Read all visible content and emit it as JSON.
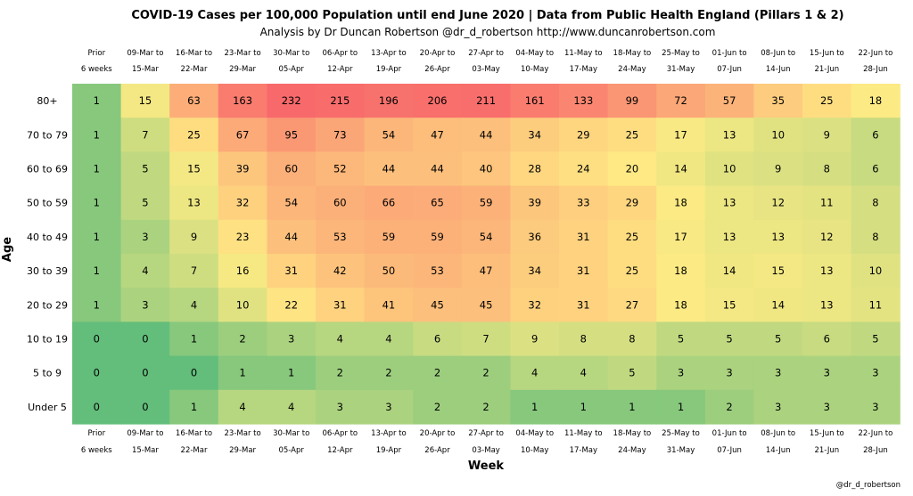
{
  "chart_data": {
    "type": "heatmap",
    "title": "COVID-19 Cases per 100,000 Population until end June 2020 | Data from Public Health England (Pillars 1 & 2)",
    "subtitle": "Analysis by Dr Duncan Robertson @dr_d_robertson http://www.duncanrobertson.com",
    "xlabel": "Week",
    "ylabel": "Age",
    "credit": "@dr_d_robertson",
    "columns": [
      [
        "Prior",
        "6 weeks"
      ],
      [
        "09-Mar to",
        "15-Mar"
      ],
      [
        "16-Mar to",
        "22-Mar"
      ],
      [
        "23-Mar to",
        "29-Mar"
      ],
      [
        "30-Mar to",
        "05-Apr"
      ],
      [
        "06-Apr to",
        "12-Apr"
      ],
      [
        "13-Apr to",
        "19-Apr"
      ],
      [
        "20-Apr to",
        "26-Apr"
      ],
      [
        "27-Apr to",
        "03-May"
      ],
      [
        "04-May to",
        "10-May"
      ],
      [
        "11-May to",
        "17-May"
      ],
      [
        "18-May to",
        "24-May"
      ],
      [
        "25-May to",
        "31-May"
      ],
      [
        "01-Jun to",
        "07-Jun"
      ],
      [
        "08-Jun to",
        "14-Jun"
      ],
      [
        "15-Jun to",
        "21-Jun"
      ],
      [
        "22-Jun to",
        "28-Jun"
      ]
    ],
    "rows": [
      "80+",
      "70 to 79",
      "60 to 69",
      "50 to 59",
      "40 to 49",
      "30 to 39",
      "20 to 29",
      "10 to 19",
      "5 to 9",
      "Under 5"
    ],
    "values": [
      [
        1,
        15,
        63,
        163,
        232,
        215,
        196,
        206,
        211,
        161,
        133,
        99,
        72,
        57,
        35,
        25,
        18
      ],
      [
        1,
        7,
        25,
        67,
        95,
        73,
        54,
        47,
        44,
        34,
        29,
        25,
        17,
        13,
        10,
        9,
        6
      ],
      [
        1,
        5,
        15,
        39,
        60,
        52,
        44,
        44,
        40,
        28,
        24,
        20,
        14,
        10,
        9,
        8,
        6
      ],
      [
        1,
        5,
        13,
        32,
        54,
        60,
        66,
        65,
        59,
        39,
        33,
        29,
        18,
        13,
        12,
        11,
        8
      ],
      [
        1,
        3,
        9,
        23,
        44,
        53,
        59,
        59,
        54,
        36,
        31,
        25,
        17,
        13,
        13,
        12,
        8
      ],
      [
        1,
        4,
        7,
        16,
        31,
        42,
        50,
        53,
        47,
        34,
        31,
        25,
        18,
        14,
        15,
        13,
        10
      ],
      [
        1,
        3,
        4,
        10,
        22,
        31,
        41,
        45,
        45,
        32,
        31,
        27,
        18,
        15,
        14,
        13,
        11
      ],
      [
        0,
        0,
        1,
        2,
        3,
        4,
        4,
        6,
        7,
        9,
        8,
        8,
        5,
        5,
        5,
        6,
        5
      ],
      [
        0,
        0,
        0,
        1,
        1,
        2,
        2,
        2,
        2,
        4,
        4,
        5,
        3,
        3,
        3,
        3,
        3
      ],
      [
        0,
        0,
        1,
        4,
        4,
        3,
        3,
        2,
        2,
        1,
        1,
        1,
        1,
        2,
        3,
        3,
        3
      ]
    ],
    "color_scale": {
      "low": "#63be7b",
      "mid": "#ffeb84",
      "high": "#f8696b"
    },
    "legend": "none"
  }
}
